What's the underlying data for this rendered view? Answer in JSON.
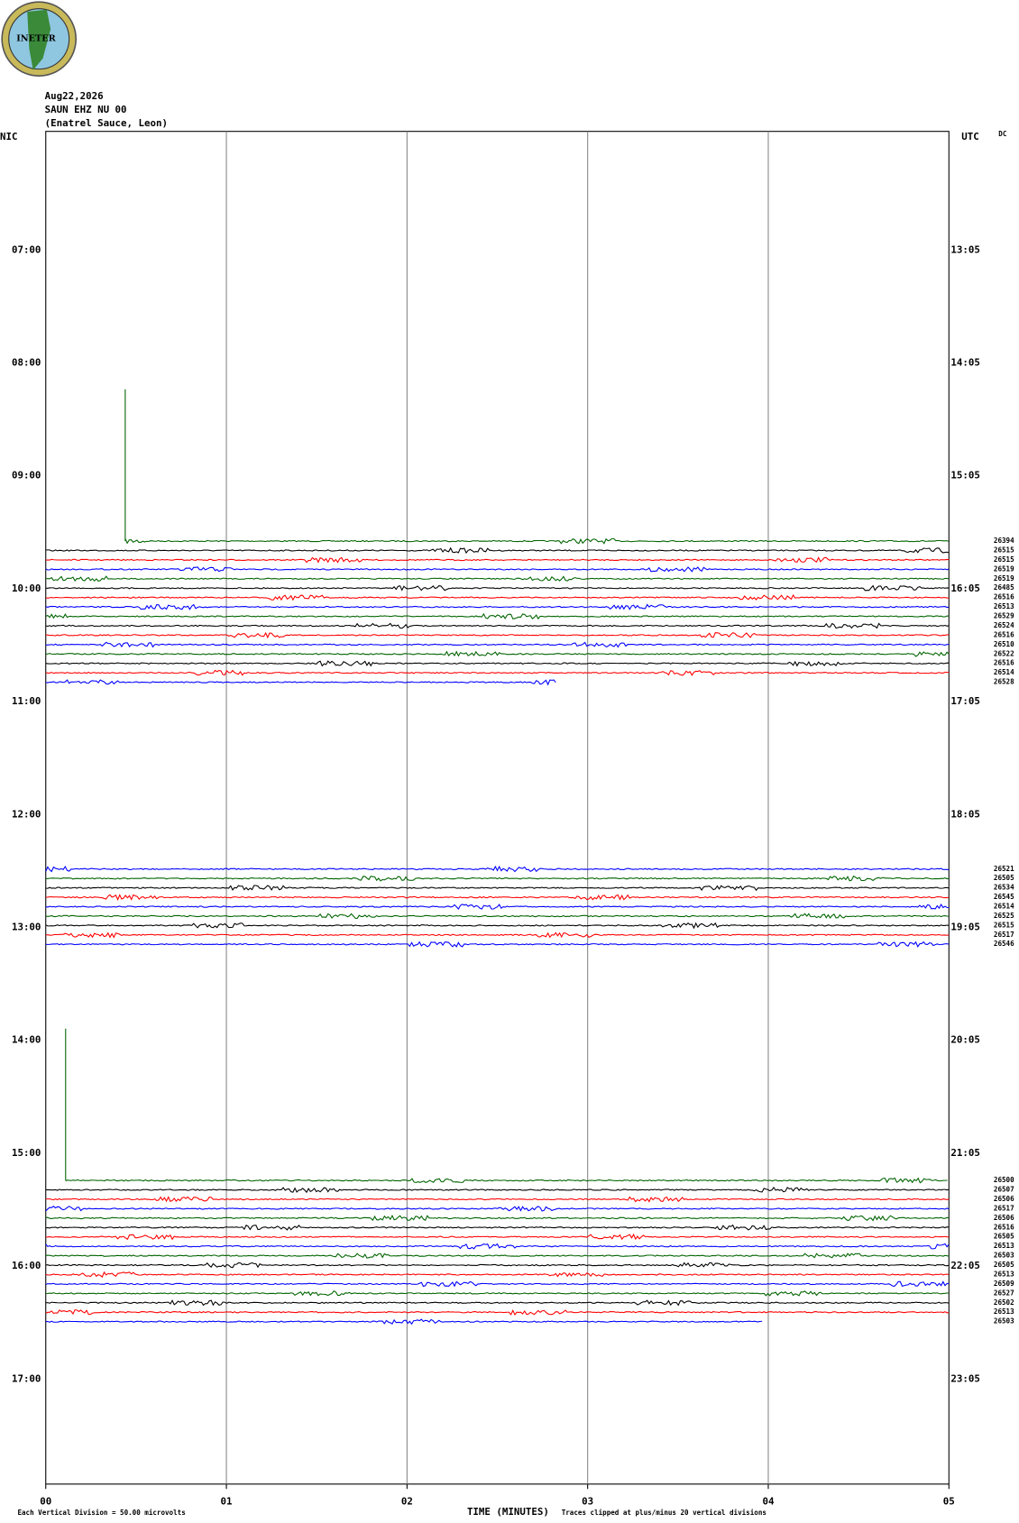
{
  "chart_data": {
    "type": "helicorder",
    "logo": "INETER",
    "date": "Aug22,2026",
    "station": "SAUN EHZ NU 00",
    "location": "(Enatrel Sauce, Leon)",
    "left_axis_title": "NIC",
    "right_axis_title": "UTC",
    "corner_note": "DC",
    "xlabel": "TIME (MINUTES)",
    "scale_note": "Each Vertical Division =   50.00 microvolts",
    "clip_note": "Traces clipped at plus/minus 20 vertical divisions",
    "xlim": [
      0,
      5
    ],
    "xticks": [
      {
        "value": 0,
        "label": "00"
      },
      {
        "value": 1,
        "label": "01"
      },
      {
        "value": 2,
        "label": "02"
      },
      {
        "value": 3,
        "label": "03"
      },
      {
        "value": 4,
        "label": "04"
      },
      {
        "value": 5,
        "label": "05"
      }
    ],
    "grid": true,
    "left_times": [
      "07:00",
      "08:00",
      "09:00",
      "10:00",
      "11:00",
      "12:00",
      "13:00",
      "14:00",
      "15:00",
      "16:00",
      "17:00"
    ],
    "right_times": [
      "13:05",
      "14:05",
      "15:05",
      "16:05",
      "17:05",
      "18:05",
      "19:05",
      "20:05",
      "21:05",
      "22:05",
      "23:05"
    ],
    "trace_groups": [
      {
        "traces": [
          {
            "label": "26394",
            "color": "#006400",
            "start": 0.44
          },
          {
            "label": "26515",
            "color": "#000000"
          },
          {
            "label": "26515",
            "color": "#ff0000"
          },
          {
            "label": "26519",
            "color": "#0000ff"
          },
          {
            "label": "26519",
            "color": "#006400"
          },
          {
            "label": "26485",
            "color": "#000000"
          },
          {
            "label": "26516",
            "color": "#ff0000"
          },
          {
            "label": "26513",
            "color": "#0000ff"
          },
          {
            "label": "26529",
            "color": "#006400"
          },
          {
            "label": "26524",
            "color": "#000000"
          },
          {
            "label": "26516",
            "color": "#ff0000"
          },
          {
            "label": "26510",
            "color": "#0000ff"
          },
          {
            "label": "26522",
            "color": "#006400"
          },
          {
            "label": "26516",
            "color": "#000000"
          },
          {
            "label": "26514",
            "color": "#ff0000"
          },
          {
            "label": "26528",
            "color": "#0000ff",
            "end": 2.83
          }
        ]
      },
      {
        "traces": [
          {
            "label": "26521",
            "color": "#0000ff"
          },
          {
            "label": "26505",
            "color": "#006400"
          },
          {
            "label": "26534",
            "color": "#000000"
          },
          {
            "label": "26545",
            "color": "#ff0000"
          },
          {
            "label": "26514",
            "color": "#0000ff"
          },
          {
            "label": "26525",
            "color": "#006400"
          },
          {
            "label": "26515",
            "color": "#000000"
          },
          {
            "label": "26517",
            "color": "#ff0000"
          },
          {
            "label": "26546",
            "color": "#0000ff"
          }
        ]
      },
      {
        "traces": [
          {
            "label": "26500",
            "color": "#006400",
            "start": 0.11
          },
          {
            "label": "26507",
            "color": "#000000"
          },
          {
            "label": "26506",
            "color": "#ff0000"
          },
          {
            "label": "26517",
            "color": "#0000ff"
          },
          {
            "label": "26506",
            "color": "#006400"
          },
          {
            "label": "26516",
            "color": "#000000"
          },
          {
            "label": "26505",
            "color": "#ff0000"
          },
          {
            "label": "26513",
            "color": "#0000ff"
          },
          {
            "label": "26503",
            "color": "#006400"
          },
          {
            "label": "26505",
            "color": "#000000"
          },
          {
            "label": "26513",
            "color": "#ff0000"
          },
          {
            "label": "26509",
            "color": "#0000ff"
          },
          {
            "label": "26527",
            "color": "#006400"
          },
          {
            "label": "26502",
            "color": "#000000"
          },
          {
            "label": "26513",
            "color": "#ff0000"
          },
          {
            "label": "26503",
            "color": "#0000ff",
            "end": 3.97
          }
        ]
      }
    ]
  }
}
